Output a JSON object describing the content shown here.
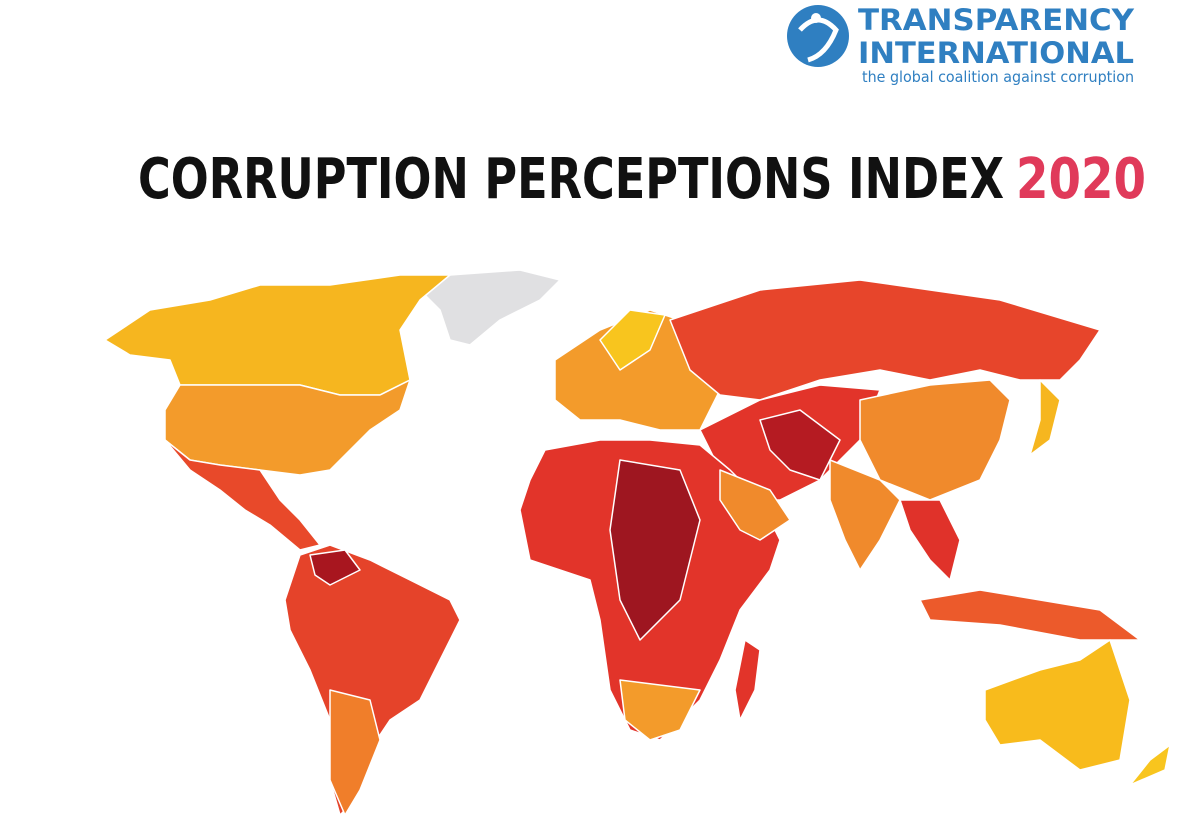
{
  "logo": {
    "line1": "TRANSPARENCY",
    "line2": "INTERNATIONAL",
    "tagline": "the global coalition against corruption"
  },
  "title": {
    "text": "CORRUPTION PERCEPTIONS INDEX",
    "year": "2020"
  }
}
